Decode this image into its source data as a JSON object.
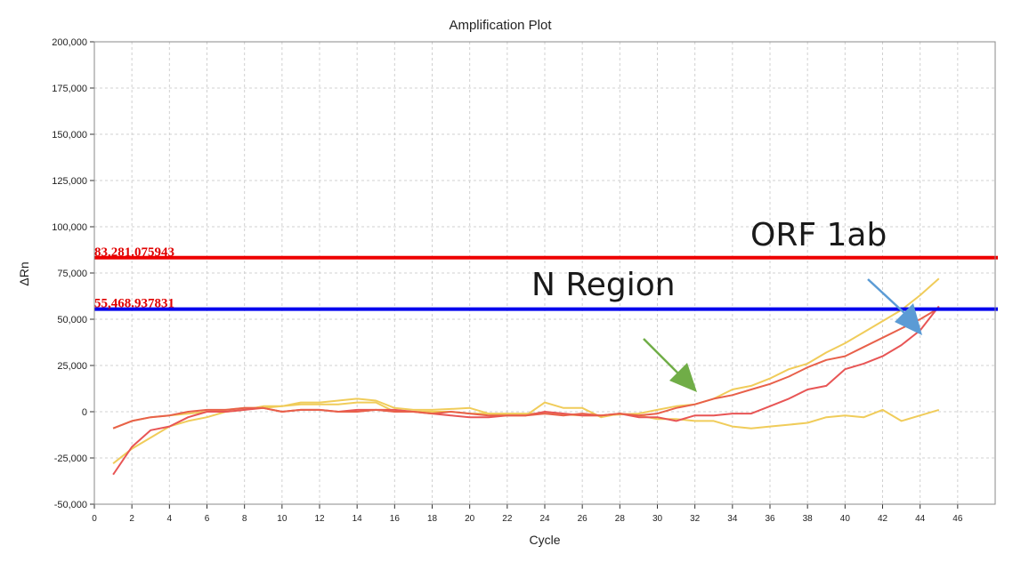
{
  "chart_data": {
    "type": "line",
    "title": "Amplification Plot",
    "xlabel": "Cycle",
    "ylabel": "ΔRn",
    "xlim": [
      0,
      48
    ],
    "ylim": [
      -50000,
      200000
    ],
    "x_ticks": [
      "0",
      "2",
      "4",
      "6",
      "8",
      "10",
      "12",
      "14",
      "16",
      "18",
      "20",
      "22",
      "24",
      "26",
      "28",
      "30",
      "32",
      "34",
      "36",
      "38",
      "40",
      "42",
      "44",
      "46"
    ],
    "y_ticks": [
      "200,000",
      "175,000",
      "150,000",
      "125,000",
      "100,000",
      "75,000",
      "50,000",
      "25,000",
      "0",
      "-25,000",
      "-50,000"
    ],
    "grid": true,
    "thresholds": [
      {
        "label": "83,281.075943",
        "value": 83281.075943,
        "color": "#ee0000",
        "label_color": "#e00000"
      },
      {
        "label": "55,468.937831",
        "value": 55468.937831,
        "color": "#0000ee",
        "label_color": "#e00000"
      }
    ],
    "annotations": [
      {
        "text": "ORF 1ab",
        "arrow_color": "#5b9bd5"
      },
      {
        "text": "N Region",
        "arrow_color": "#70ad47"
      }
    ],
    "x": [
      1,
      2,
      3,
      4,
      5,
      6,
      7,
      8,
      9,
      10,
      11,
      12,
      13,
      14,
      15,
      16,
      17,
      18,
      19,
      20,
      21,
      22,
      23,
      24,
      25,
      26,
      27,
      28,
      29,
      30,
      31,
      32,
      33,
      34,
      35,
      36,
      37,
      38,
      39,
      40,
      41,
      42,
      43,
      44,
      45
    ],
    "series": [
      {
        "color": "#f0cc5a",
        "values": [
          -28000,
          -20000,
          -14000,
          -8000,
          -5000,
          -3000,
          0,
          1000,
          3000,
          3000,
          5000,
          5000,
          6000,
          7000,
          6000,
          2000,
          1000,
          1000,
          1500,
          2000,
          -1000,
          -1000,
          -1000,
          -1000,
          -1500,
          -2000,
          -2000,
          -1500,
          -1000,
          1000,
          3000,
          4000,
          7000,
          12000,
          14000,
          18000,
          23000,
          26000,
          32000,
          37000,
          43000,
          49000,
          55000,
          63000,
          72000
        ]
      },
      {
        "color": "#f0cc5a",
        "values": [
          -9000,
          -5000,
          -3000,
          -2000,
          -1000,
          0,
          1000,
          2000,
          2000,
          3000,
          4000,
          4000,
          4000,
          5000,
          5000,
          0,
          0,
          0,
          0,
          -1000,
          -1000,
          -2000,
          -2000,
          5000,
          2000,
          2000,
          -3000,
          -1000,
          -2000,
          -4000,
          -4000,
          -5000,
          -5000,
          -8000,
          -9000,
          -8000,
          -7000,
          -6000,
          -3000,
          -2000,
          -3000,
          1000,
          -5000,
          -2000,
          1000
        ]
      },
      {
        "color": "#e85555",
        "values": [
          -34000,
          -19000,
          -10000,
          -8000,
          -3000,
          0,
          0,
          1000,
          2000,
          0,
          1000,
          1000,
          0,
          1000,
          1000,
          1000,
          0,
          -1000,
          -2000,
          -3000,
          -3000,
          -2000,
          -2000,
          0,
          -1000,
          -2000,
          -2000,
          -1000,
          -3000,
          -3000,
          -5000,
          -2000,
          -2000,
          -1000,
          -1000,
          3000,
          7000,
          12000,
          14000,
          23000,
          26000,
          30000,
          36000,
          44000,
          57000
        ]
      },
      {
        "color": "#e8604a",
        "values": [
          -9000,
          -5000,
          -3000,
          -2000,
          0,
          1000,
          1000,
          2000,
          2000,
          0,
          1000,
          1000,
          0,
          0,
          1000,
          0,
          0,
          -1000,
          0,
          -1000,
          -2000,
          -2000,
          -2000,
          -1000,
          -2000,
          -1000,
          -2000,
          -1000,
          -2000,
          -1000,
          2000,
          4000,
          7000,
          9000,
          12000,
          15000,
          19000,
          24000,
          28000,
          30000,
          35000,
          40000,
          45000,
          50000,
          56000
        ]
      }
    ]
  }
}
